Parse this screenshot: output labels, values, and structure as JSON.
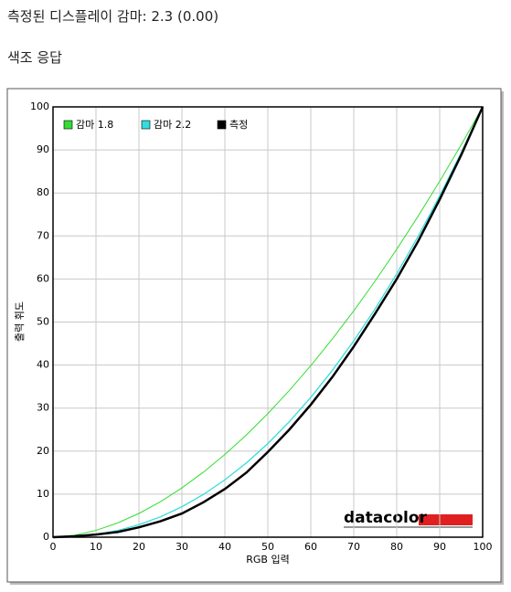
{
  "chart_data": {
    "type": "line",
    "header": "측정된 디스플레이 감마: 2.3 (0.00)",
    "title": "색조 응답",
    "x_label": "RGB 입력",
    "y_label": "출력 휘도",
    "watermark": "datacolor",
    "x": [
      0,
      5,
      10,
      15,
      20,
      25,
      30,
      35,
      40,
      45,
      50,
      55,
      60,
      65,
      70,
      75,
      80,
      85,
      90,
      95,
      100
    ],
    "series": [
      {
        "name": "감마 1.8",
        "color": "#33dd33",
        "width": 1,
        "values": [
          0,
          0.46,
          1.58,
          3.29,
          5.52,
          8.25,
          11.45,
          15.11,
          19.22,
          23.76,
          28.72,
          34.09,
          39.87,
          46.05,
          52.62,
          59.58,
          66.92,
          74.64,
          82.72,
          91.18,
          100
        ]
      },
      {
        "name": "감마 2.2",
        "color": "#33dddd",
        "width": 1.3,
        "values": [
          0,
          0.14,
          0.63,
          1.54,
          2.9,
          4.74,
          7.08,
          9.93,
          13.32,
          17.26,
          21.76,
          26.85,
          32.5,
          38.76,
          45.63,
          53.1,
          61.21,
          69.94,
          79.31,
          89.32,
          100
        ]
      },
      {
        "name": "측정",
        "color": "#000000",
        "width": 2.5,
        "values": [
          0,
          0.2,
          0.6,
          1.2,
          2.3,
          3.7,
          5.5,
          8.1,
          11.2,
          15,
          19.8,
          25,
          30.8,
          37.2,
          44.3,
          52,
          60,
          68.8,
          78.5,
          88.8,
          100
        ]
      }
    ],
    "xlim": [
      0,
      100
    ],
    "ylim": [
      0,
      100
    ],
    "xticks": [
      0,
      10,
      20,
      30,
      40,
      50,
      60,
      70,
      80,
      90,
      100
    ],
    "yticks": [
      0,
      10,
      20,
      30,
      40,
      50,
      60,
      70,
      80,
      90,
      100
    ],
    "grid": true
  }
}
